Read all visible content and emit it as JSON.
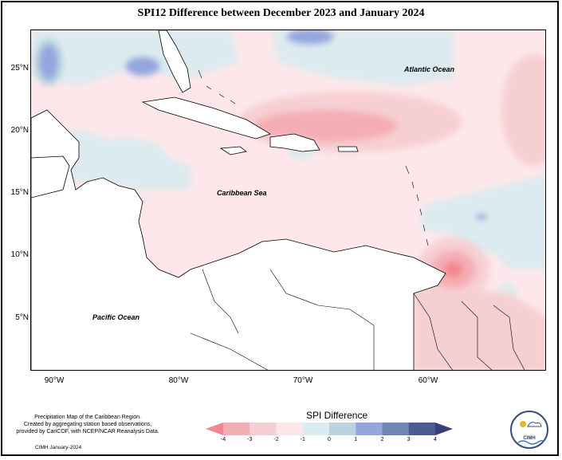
{
  "title": "SPI12 Difference between December 2023 and January 2024",
  "lat_labels": [
    "25°N",
    "20°N",
    "15°N",
    "10°N",
    "5°N"
  ],
  "lon_labels": [
    "90°W",
    "80°W",
    "70°W",
    "60°W"
  ],
  "oceans": {
    "atlantic": "Atlantic Ocean",
    "caribbean": "Caribbean Sea",
    "pacific": "Pacific Ocean"
  },
  "credit": {
    "line1": "Precipitation Map of the Caribbean Region.",
    "line2": "Created by aggregating station based observations,",
    "line3": "provided by CariCOF, with NCEP/NCAR Reanalysis Data.",
    "date": "CIMH January-2024"
  },
  "legend": {
    "title": "SPI Difference",
    "ticks": [
      "-4",
      "-3",
      "-2",
      "-1",
      "0",
      "1",
      "2",
      "3",
      "4"
    ],
    "colors": [
      "#f4868f",
      "#f4aeb3",
      "#f6cfd2",
      "#fde7ea",
      "#dcebef",
      "#b9d4e0",
      "#95a6df",
      "#6f86b8",
      "#4d5b93",
      "#373f7a"
    ]
  },
  "logo_text": "CIMH"
}
